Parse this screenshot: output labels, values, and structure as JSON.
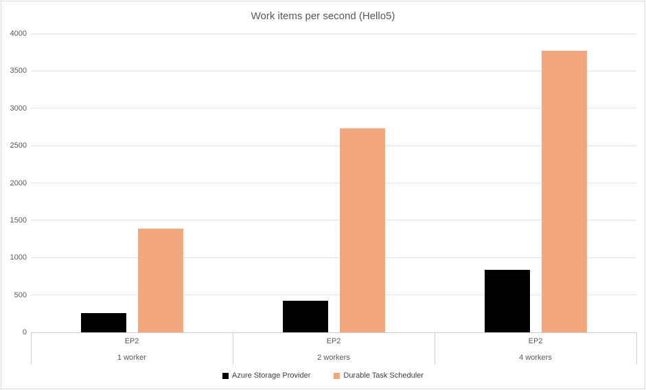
{
  "chart_data": {
    "type": "bar",
    "title": "Work items per second (Hello5)",
    "categories": [
      {
        "primary": "EP2",
        "secondary": "1 worker"
      },
      {
        "primary": "EP2",
        "secondary": "2 workers"
      },
      {
        "primary": "EP2",
        "secondary": "4 workers"
      }
    ],
    "series": [
      {
        "name": "Azure Storage Provider",
        "color": "#000000",
        "values": [
          260,
          420,
          840
        ]
      },
      {
        "name": "Durable Task Scheduler",
        "color": "#F2A77E",
        "values": [
          1390,
          2730,
          3770
        ]
      }
    ],
    "xlabel": "",
    "ylabel": "",
    "ylim": [
      0,
      4000
    ],
    "yticks": [
      0,
      500,
      1000,
      1500,
      2000,
      2500,
      3000,
      3500,
      4000
    ],
    "grid": true,
    "legend_position": "bottom"
  },
  "colors": {
    "gridline": "#e2e2e2",
    "axis_line": "#d0d0d0",
    "tick_text": "#595959",
    "title_text": "#595959",
    "legend_text": "#404040",
    "figure_border": "#d9d9d9"
  }
}
